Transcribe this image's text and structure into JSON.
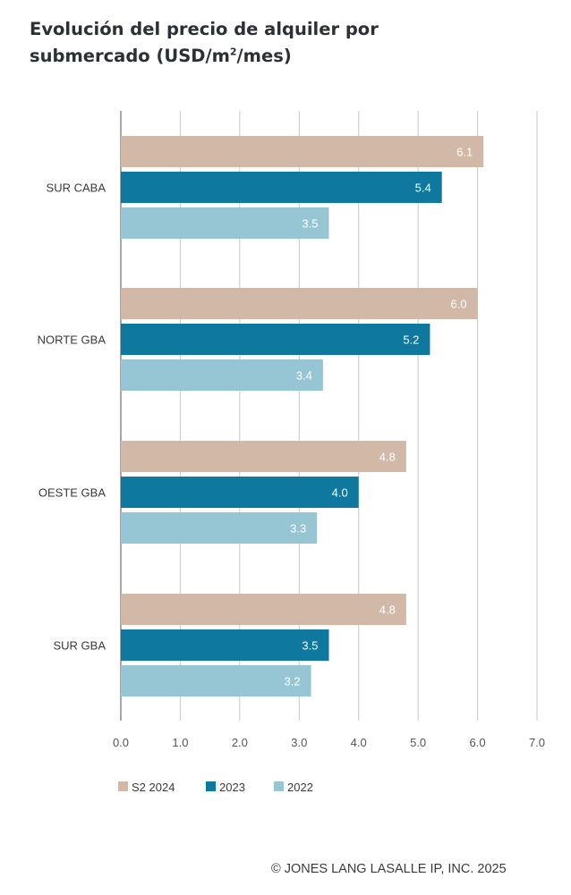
{
  "chart_data": {
    "type": "bar",
    "orientation": "horizontal",
    "title": "Evolución del precio de alquiler por submercado (USD/m²/mes)",
    "title_main": "Evolución del precio de alquiler por submercado (USD/m",
    "title_sup": "2",
    "title_end": "/mes)",
    "categories": [
      "SUR CABA",
      "NORTE GBA",
      "OESTE GBA",
      "SUR GBA"
    ],
    "series": [
      {
        "name": "S2 2024",
        "color": "#d2b8a6",
        "values": [
          6.1,
          6.0,
          4.8,
          4.8
        ]
      },
      {
        "name": "2023",
        "color": "#0e789f",
        "values": [
          5.4,
          5.2,
          4.0,
          3.5
        ]
      },
      {
        "name": "2022",
        "color": "#96c5d3",
        "values": [
          3.5,
          3.4,
          3.3,
          3.2
        ]
      }
    ],
    "xticks": [
      "0.0",
      "1.0",
      "2.0",
      "3.0",
      "4.0",
      "5.0",
      "6.0",
      "7.0"
    ],
    "xlim": [
      0,
      7
    ],
    "xlabel": "",
    "ylabel": "",
    "grid": true,
    "legend_position": "bottom-left"
  },
  "credit": "© JONES LANG LASALLE IP, INC. 2025"
}
